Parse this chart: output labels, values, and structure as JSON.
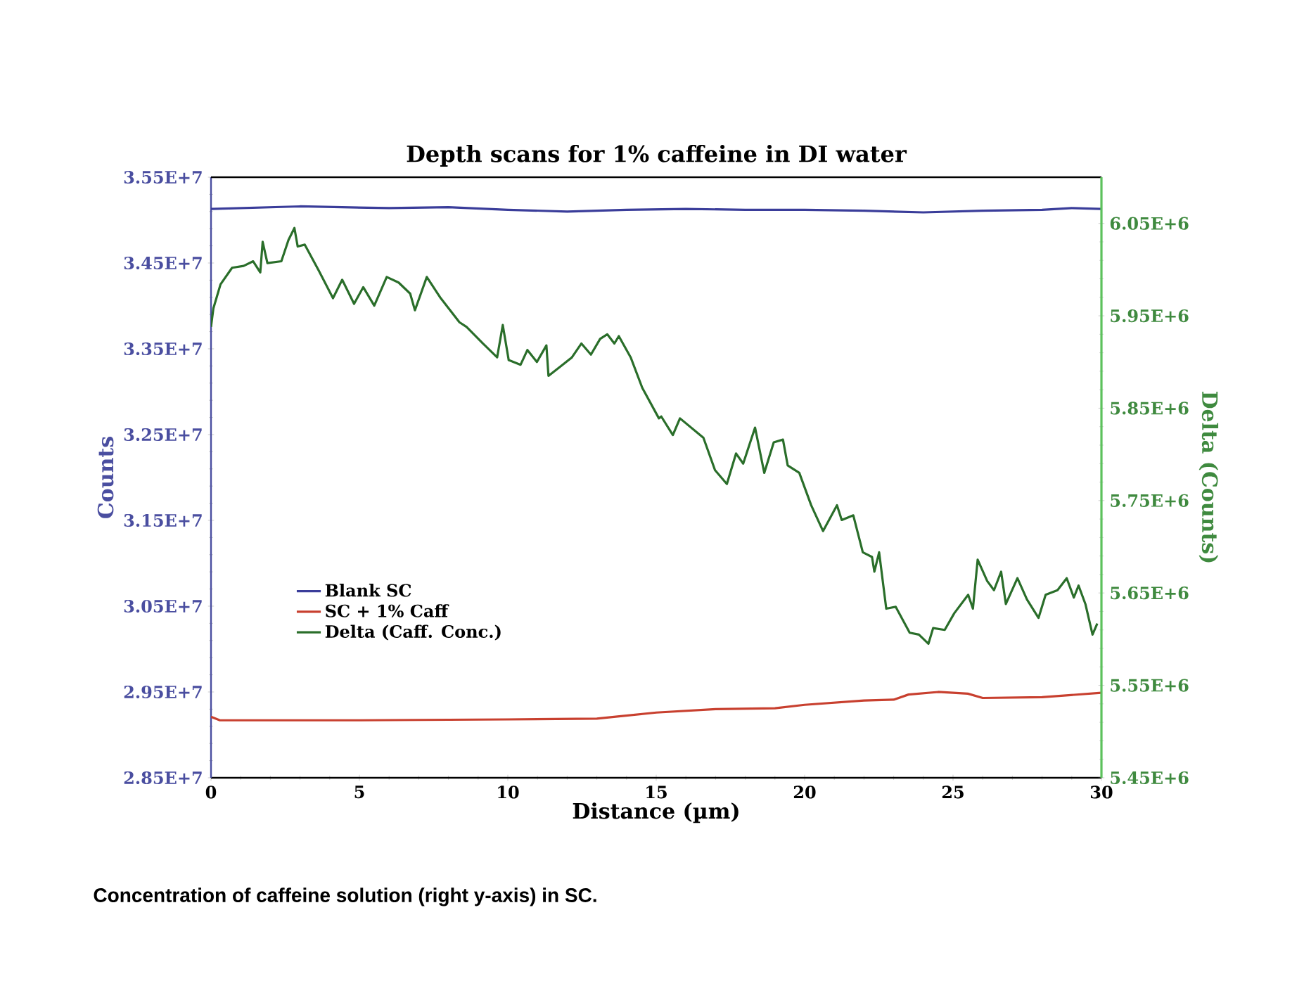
{
  "chart_data": {
    "type": "line",
    "title": "Depth scans for 1% caffeine in DI water",
    "xlabel": "Distance (µm)",
    "ylabel": "Counts",
    "y2label": "Delta (Counts)",
    "annotations": [
      "Concentration of caffeine solution (right y-axis) in SC."
    ],
    "xlim": [
      0,
      30
    ],
    "xticks": [
      0,
      5,
      10,
      15,
      20,
      25,
      30
    ],
    "ylim": [
      28500000,
      35500000
    ],
    "yticks": [
      {
        "value": 28500000,
        "label": "2.85E+7"
      },
      {
        "value": 29500000,
        "label": "2.95E+7"
      },
      {
        "value": 30500000,
        "label": "3.05E+7"
      },
      {
        "value": 31500000,
        "label": "3.15E+7"
      },
      {
        "value": 32500000,
        "label": "3.25E+7"
      },
      {
        "value": 33500000,
        "label": "3.35E+7"
      },
      {
        "value": 34500000,
        "label": "3.45E+7"
      },
      {
        "value": 35500000,
        "label": "3.55E+7"
      }
    ],
    "y2lim": [
      5450000,
      6100000
    ],
    "y2ticks": [
      {
        "value": 5450000,
        "label": "5.45E+6"
      },
      {
        "value": 5550000,
        "label": "5.55E+6"
      },
      {
        "value": 5650000,
        "label": "5.65E+6"
      },
      {
        "value": 5750000,
        "label": "5.75E+6"
      },
      {
        "value": 5850000,
        "label": "5.85E+6"
      },
      {
        "value": 5950000,
        "label": "5.95E+6"
      },
      {
        "value": 6050000,
        "label": "6.05E+6"
      }
    ],
    "grid": false,
    "legend": "left",
    "series": [
      {
        "name": "Blank SC",
        "color": "#3a3d9a",
        "x": [
          0,
          3,
          6,
          8,
          10,
          12,
          14,
          16,
          18,
          20,
          22,
          24,
          26,
          28,
          29,
          30
        ],
        "values": [
          35130000,
          35160000,
          35140000,
          35150000,
          35120000,
          35100000,
          35120000,
          35130000,
          35120000,
          35120000,
          35110000,
          35090000,
          35110000,
          35120000,
          35140000,
          35130000
        ]
      },
      {
        "name": "SC + 1% Caff",
        "color": "#c8402f",
        "x": [
          0,
          0.3,
          5,
          10,
          13,
          15,
          17,
          19,
          20,
          22,
          23,
          23.5,
          24.5,
          25.5,
          26,
          28,
          30
        ],
        "values": [
          29210000,
          29170000,
          29170000,
          29180000,
          29190000,
          29260000,
          29300000,
          29310000,
          29350000,
          29400000,
          29410000,
          29470000,
          29500000,
          29480000,
          29430000,
          29440000,
          29490000
        ]
      },
      {
        "name": "Delta (Caff. Conc.)",
        "color": "#2a6e2a",
        "axis": "y2",
        "x": [
          0,
          0.08,
          0.32,
          0.71,
          1.1,
          1.42,
          1.66,
          1.74,
          1.9,
          2.37,
          2.61,
          2.81,
          2.92,
          3.16,
          3.63,
          4.11,
          4.42,
          4.82,
          5.13,
          5.5,
          5.92,
          6.32,
          6.71,
          6.87,
          7.27,
          7.74,
          8.37,
          8.61,
          9.16,
          9.64,
          9.83,
          10.03,
          10.43,
          10.66,
          10.98,
          11.3,
          11.37,
          11.77,
          12.16,
          12.48,
          12.8,
          13.11,
          13.35,
          13.59,
          13.74,
          14.14,
          14.53,
          15.09,
          15.17,
          15.56,
          15.8,
          16.59,
          16.98,
          17.38,
          17.69,
          17.93,
          18.33,
          18.64,
          18.96,
          19.27,
          19.43,
          19.82,
          20.22,
          20.62,
          21.09,
          21.25,
          21.64,
          21.96,
          22.27,
          22.35,
          22.51,
          22.75,
          23.07,
          23.54,
          23.85,
          24.17,
          24.33,
          24.72,
          25.04,
          25.51,
          25.67,
          25.83,
          26.15,
          26.38,
          26.62,
          26.78,
          27.17,
          27.49,
          27.88,
          28.12,
          28.52,
          28.83,
          29.07,
          29.23,
          29.46,
          29.7,
          29.86
        ],
        "values": [
          5938000,
          5958000,
          5984000,
          6002000,
          6004000,
          6009000,
          5997000,
          6030000,
          6007000,
          6009000,
          6032000,
          6045000,
          6025000,
          6027000,
          5999000,
          5969000,
          5989000,
          5963000,
          5981000,
          5961000,
          5992000,
          5986000,
          5974000,
          5956000,
          5992000,
          5969000,
          5943000,
          5938000,
          5920000,
          5905000,
          5940000,
          5902000,
          5897000,
          5913000,
          5900000,
          5918000,
          5885000,
          5895000,
          5905000,
          5920000,
          5908000,
          5925000,
          5930000,
          5920000,
          5928000,
          5905000,
          5872000,
          5839000,
          5841000,
          5821000,
          5839000,
          5818000,
          5783000,
          5768000,
          5801000,
          5790000,
          5829000,
          5780000,
          5813000,
          5816000,
          5788000,
          5780000,
          5745000,
          5717000,
          5745000,
          5729000,
          5734000,
          5694000,
          5689000,
          5673000,
          5694000,
          5633000,
          5635000,
          5607000,
          5605000,
          5595000,
          5612000,
          5610000,
          5628000,
          5648000,
          5633000,
          5686000,
          5663000,
          5653000,
          5673000,
          5638000,
          5666000,
          5643000,
          5623000,
          5648000,
          5653000,
          5666000,
          5645000,
          5658000,
          5638000,
          5605000,
          5617000
        ]
      }
    ]
  }
}
